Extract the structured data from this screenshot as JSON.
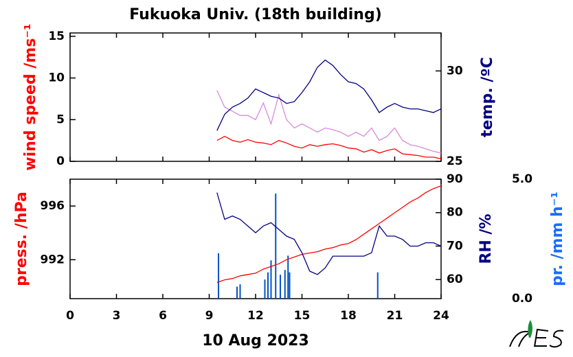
{
  "title": "Fukuoka Univ. (18th building)",
  "chart_data": [
    {
      "type": "line",
      "xlim": [
        0,
        24
      ],
      "x": [
        9.5,
        10,
        10.5,
        11,
        11.5,
        12,
        12.5,
        13,
        13.5,
        14,
        14.5,
        15,
        15.5,
        16,
        16.5,
        17,
        17.5,
        18,
        18.5,
        19,
        19.5,
        20,
        20.5,
        21,
        21.5,
        22,
        22.5,
        23,
        23.5,
        24
      ],
      "ylim": [
        0,
        15.4
      ],
      "yticks": [
        0,
        5,
        10,
        15
      ],
      "ylabel": "wind speed /ms⁻¹",
      "ylabel_color": "#ff0000",
      "y2lim": [
        25,
        32.1
      ],
      "y2ticks": [
        25,
        30
      ],
      "y2label": "temp. /ºC",
      "y2label_color": "#000080",
      "series": [
        {
          "color": "#d98ad9",
          "values": [
            8.5,
            6.5,
            6,
            5.5,
            5.5,
            5,
            7,
            4.5,
            8,
            5,
            4,
            4.5,
            4,
            3.5,
            4,
            3.8,
            3.5,
            3,
            3.5,
            3,
            4,
            2.5,
            3,
            4,
            2.5,
            2,
            1.8,
            1.5,
            1.2,
            1
          ]
        },
        {
          "color": "#ff0000",
          "values": [
            2.5,
            3.0,
            2.5,
            2.3,
            2.6,
            2.3,
            2.2,
            2.0,
            2.5,
            2.2,
            1.8,
            1.6,
            2.0,
            1.8,
            2.0,
            2.1,
            1.9,
            1.6,
            1.5,
            1.1,
            1.4,
            1.0,
            1.3,
            1.5,
            0.9,
            0.8,
            0.7,
            0.5,
            0.5,
            0.3
          ]
        },
        {
          "color": "#000080",
          "axis": "y2",
          "values": [
            26.7,
            27.6,
            28.0,
            28.2,
            28.5,
            29.0,
            28.8,
            28.6,
            28.5,
            28.2,
            28.3,
            28.8,
            29.4,
            30.2,
            30.6,
            30.3,
            29.8,
            29.4,
            29.3,
            29.0,
            28.4,
            27.7,
            28.0,
            28.2,
            28.0,
            27.9,
            27.9,
            27.8,
            27.7,
            27.9
          ]
        }
      ]
    },
    {
      "type": "line",
      "xlim": [
        0,
        24
      ],
      "xticks": [
        0,
        3,
        6,
        9,
        12,
        15,
        18,
        21,
        24
      ],
      "xlabel": "10 Aug 2023",
      "x": [
        9.5,
        10,
        10.5,
        11,
        11.5,
        12,
        12.5,
        13,
        13.5,
        14,
        14.5,
        15,
        15.5,
        16,
        16.5,
        17,
        17.5,
        18,
        18.5,
        19,
        19.5,
        20,
        20.5,
        21,
        21.5,
        22,
        22.5,
        23,
        23.5,
        24
      ],
      "ylim": [
        989.1,
        998
      ],
      "yticks": [
        992,
        996
      ],
      "ylabel": "press. /hPa",
      "ylabel_color": "#ff0000",
      "y2lim": [
        54.3,
        90
      ],
      "y2ticks": [
        60,
        70,
        80,
        90
      ],
      "y2label": "RH /%",
      "y2label_color": "#000080",
      "y3lim": [
        0,
        5
      ],
      "y3ticks": [
        {
          "value": 0,
          "label": "0.0"
        },
        {
          "value": 5,
          "label": "5.0"
        }
      ],
      "y3label": "pr. /mm h⁻¹",
      "y3label_color": "#1a6cff",
      "series": [
        {
          "color": "#0050c8",
          "axis": "y3",
          "type": "bar",
          "x": [
            9.6,
            10.8,
            11.0,
            12.6,
            12.8,
            13.0,
            13.3,
            13.6,
            13.9,
            14.1,
            14.2,
            19.9
          ],
          "values": [
            1.9,
            0.5,
            0.6,
            0.8,
            1.1,
            1.6,
            4.4,
            1.0,
            1.2,
            1.8,
            1.1,
            1.1
          ]
        },
        {
          "color": "#ff0000",
          "values": [
            990.3,
            990.5,
            990.6,
            990.8,
            990.9,
            991.0,
            991.3,
            991.5,
            991.7,
            992.0,
            992.2,
            992.4,
            992.5,
            992.6,
            992.8,
            992.9,
            993.1,
            993.2,
            993.5,
            993.9,
            994.3,
            994.7,
            995.1,
            995.5,
            995.9,
            996.3,
            996.6,
            997.0,
            997.3,
            997.5
          ]
        },
        {
          "color": "#000080",
          "axis": "y2",
          "values": [
            86,
            78,
            79,
            78,
            76,
            74,
            76,
            77,
            75,
            73,
            72,
            68,
            62.5,
            61.5,
            63.5,
            67,
            67,
            67,
            67,
            67,
            68,
            76,
            73,
            73,
            72,
            70,
            70,
            71,
            71,
            70
          ]
        }
      ]
    }
  ]
}
